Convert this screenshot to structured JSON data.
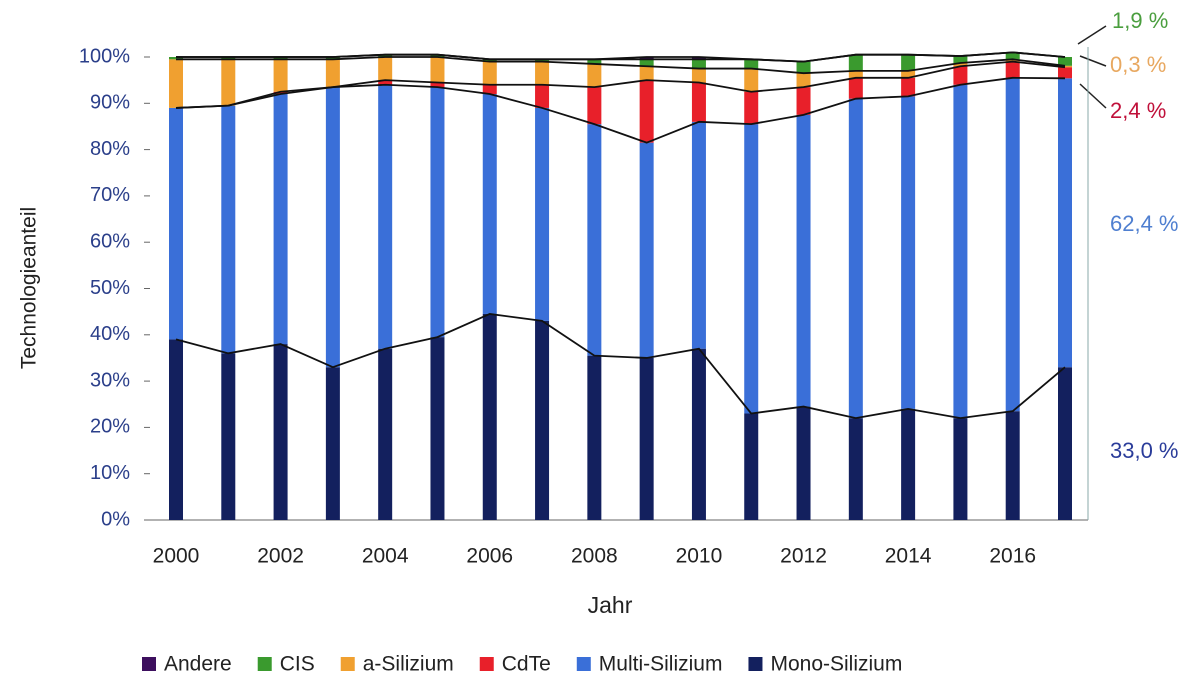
{
  "chart_data": {
    "type": "stacked_bar",
    "x_label": "Jahr",
    "y_label": "Technologieanteil",
    "categories": [
      "2000",
      null,
      "2002",
      null,
      "2004",
      null,
      "2006",
      null,
      "2008",
      null,
      "2010",
      null,
      "2012",
      null,
      "2014",
      null,
      "2016",
      null
    ],
    "series": [
      {
        "name": "Andere",
        "color": "#3d0f5e",
        "values": [
          0,
          0,
          0,
          0,
          0,
          0,
          0,
          0,
          0,
          0.5,
          0.5,
          0,
          0,
          0,
          0,
          0,
          0,
          0
        ]
      },
      {
        "name": "CIS",
        "color": "#3a9a2e",
        "values": [
          0.5,
          0.5,
          0.5,
          0.5,
          0.5,
          0.5,
          0.5,
          0.5,
          1,
          1.5,
          2,
          2,
          2.5,
          3.5,
          3.5,
          1.5,
          1.5,
          1.9
        ]
      },
      {
        "name": "a-Silizium",
        "color": "#f0a030",
        "values": [
          10.5,
          10,
          7,
          6,
          5,
          5.5,
          5,
          5,
          5,
          3,
          3,
          5,
          3,
          1.5,
          1.5,
          0.7,
          0.5,
          0.3
        ]
      },
      {
        "name": "CdTe",
        "color": "#e8202a",
        "values": [
          0,
          0,
          0.5,
          0,
          1,
          1,
          2,
          5,
          8,
          13.5,
          8.5,
          7,
          6,
          4.5,
          4,
          4,
          3.5,
          2.4
        ]
      },
      {
        "name": "Multi-Silizium",
        "color": "#3a6fd8",
        "values": [
          50,
          53.5,
          54,
          60.5,
          57,
          54,
          47.5,
          46,
          50,
          46.5,
          49,
          62.5,
          63,
          69,
          67.5,
          72,
          72,
          62.4
        ]
      },
      {
        "name": "Mono-Silizium",
        "color": "#13205e",
        "values": [
          39,
          36,
          38,
          33,
          37,
          39.5,
          44.5,
          43,
          35.5,
          35,
          37,
          23,
          24.5,
          22,
          24,
          22,
          23.5,
          33
        ]
      }
    ],
    "ylim": [
      0,
      100
    ],
    "yticks": [
      {
        "value": 0,
        "label": "0%"
      },
      {
        "value": 10,
        "label": "10%"
      },
      {
        "value": 20,
        "label": "20%"
      },
      {
        "value": 30,
        "label": "30%"
      },
      {
        "value": 40,
        "label": "40%"
      },
      {
        "value": 50,
        "label": "50%"
      },
      {
        "value": 60,
        "label": "60%"
      },
      {
        "value": 70,
        "label": "70%"
      },
      {
        "value": 80,
        "label": "80%"
      },
      {
        "value": 90,
        "label": "90%"
      },
      {
        "value": 100,
        "label": "100%"
      }
    ],
    "annotations": [
      {
        "text": "1,9 %",
        "color": "#4a9e3e"
      },
      {
        "text": "0,3 %",
        "color": "#e8a860"
      },
      {
        "text": "2,4 %",
        "color": "#c0103a"
      },
      {
        "text": "62,4 %",
        "color": "#4f7fd0"
      },
      {
        "text": "33,0 %",
        "color": "#2a3c9a"
      }
    ],
    "legend": "bottom"
  }
}
